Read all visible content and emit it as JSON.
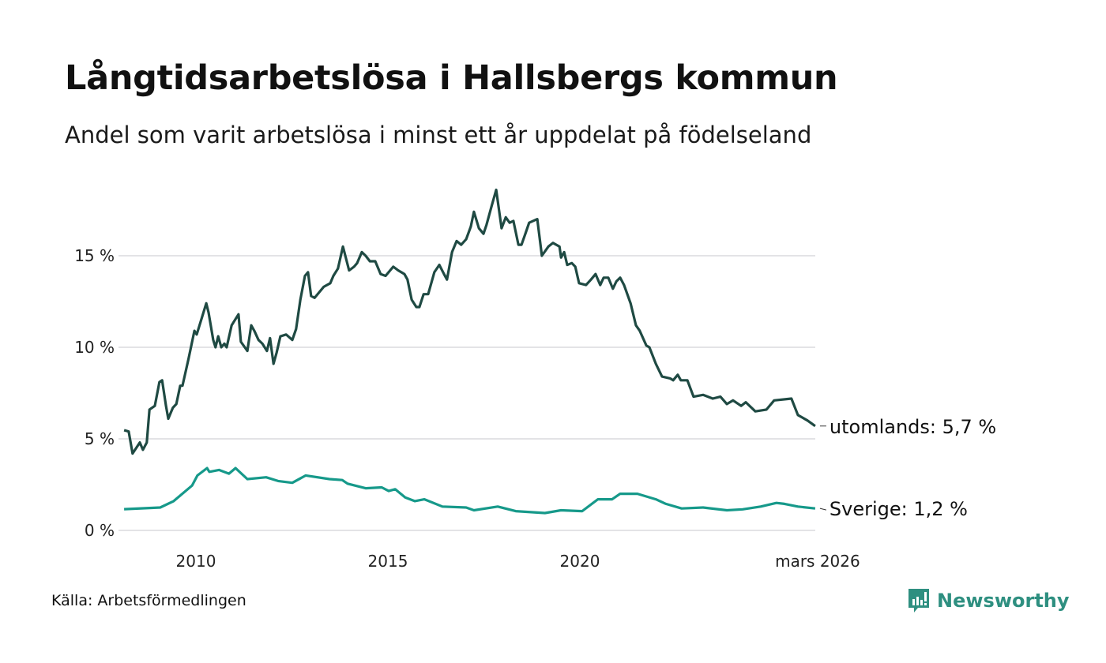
{
  "header": {
    "title": "Långtidsarbetslösa i Hallsbergs kommun",
    "subtitle": "Andel som varit arbetslösa i minst ett år uppdelat på födelseland"
  },
  "footer": {
    "source": "Källa: Arbetsförmedlingen",
    "logo_text": "Newsworthy"
  },
  "colors": {
    "utomlands": "#1f4a43",
    "sverige": "#16998a",
    "grid": "#e3e3e6",
    "logo": "#2e8f80"
  },
  "chart_data": {
    "type": "line",
    "title": "Långtidsarbetslösa i Hallsbergs kommun",
    "xlabel": "",
    "ylabel": "",
    "xlim": [
      2008.13,
      2026.13
    ],
    "ylim": [
      0,
      19
    ],
    "grid": true,
    "y_ticks": [
      {
        "value": 0,
        "label": "0 %"
      },
      {
        "value": 5,
        "label": "5 %"
      },
      {
        "value": 10,
        "label": "10 %"
      },
      {
        "value": 15,
        "label": "15 %"
      }
    ],
    "x_ticks": [
      {
        "value": 2010,
        "label": "2010"
      },
      {
        "value": 2015,
        "label": "2015"
      },
      {
        "value": 2020,
        "label": "2020"
      },
      {
        "value": 2026.13,
        "label": "mars 2026"
      }
    ],
    "series": [
      {
        "name": "utomlands",
        "end_label": "utomlands: 5,7 %",
        "points": [
          [
            2008.13,
            5.47
          ],
          [
            2008.25,
            5.4
          ],
          [
            2008.35,
            4.2
          ],
          [
            2008.54,
            4.8
          ],
          [
            2008.62,
            4.4
          ],
          [
            2008.72,
            4.8
          ],
          [
            2008.79,
            6.6
          ],
          [
            2008.93,
            6.8
          ],
          [
            2009.05,
            8.1
          ],
          [
            2009.12,
            8.2
          ],
          [
            2009.22,
            6.8
          ],
          [
            2009.28,
            6.1
          ],
          [
            2009.4,
            6.7
          ],
          [
            2009.49,
            6.9
          ],
          [
            2009.59,
            7.9
          ],
          [
            2009.65,
            7.9
          ],
          [
            2009.81,
            9.4
          ],
          [
            2009.96,
            10.9
          ],
          [
            2010.02,
            10.7
          ],
          [
            2010.27,
            12.4
          ],
          [
            2010.33,
            11.9
          ],
          [
            2010.45,
            10.4
          ],
          [
            2010.51,
            10.0
          ],
          [
            2010.58,
            10.6
          ],
          [
            2010.66,
            10.0
          ],
          [
            2010.74,
            10.2
          ],
          [
            2010.8,
            10.0
          ],
          [
            2010.93,
            11.2
          ],
          [
            2011.11,
            11.8
          ],
          [
            2011.17,
            10.3
          ],
          [
            2011.34,
            9.8
          ],
          [
            2011.44,
            11.2
          ],
          [
            2011.52,
            10.9
          ],
          [
            2011.63,
            10.4
          ],
          [
            2011.73,
            10.2
          ],
          [
            2011.85,
            9.8
          ],
          [
            2011.93,
            10.5
          ],
          [
            2012.02,
            9.1
          ],
          [
            2012.1,
            9.7
          ],
          [
            2012.2,
            10.6
          ],
          [
            2012.35,
            10.7
          ],
          [
            2012.51,
            10.4
          ],
          [
            2012.61,
            11.0
          ],
          [
            2012.72,
            12.6
          ],
          [
            2012.84,
            13.9
          ],
          [
            2012.92,
            14.1
          ],
          [
            2013.0,
            12.8
          ],
          [
            2013.09,
            12.7
          ],
          [
            2013.21,
            13.0
          ],
          [
            2013.33,
            13.3
          ],
          [
            2013.5,
            13.5
          ],
          [
            2013.58,
            13.9
          ],
          [
            2013.7,
            14.3
          ],
          [
            2013.83,
            15.5
          ],
          [
            2013.99,
            14.2
          ],
          [
            2014.12,
            14.4
          ],
          [
            2014.2,
            14.6
          ],
          [
            2014.32,
            15.2
          ],
          [
            2014.42,
            15.0
          ],
          [
            2014.53,
            14.7
          ],
          [
            2014.67,
            14.7
          ],
          [
            2014.81,
            14.0
          ],
          [
            2014.94,
            13.9
          ],
          [
            2015.14,
            14.4
          ],
          [
            2015.27,
            14.2
          ],
          [
            2015.43,
            14.0
          ],
          [
            2015.51,
            13.7
          ],
          [
            2015.62,
            12.6
          ],
          [
            2015.74,
            12.2
          ],
          [
            2015.82,
            12.2
          ],
          [
            2015.93,
            12.9
          ],
          [
            2016.05,
            12.9
          ],
          [
            2016.21,
            14.1
          ],
          [
            2016.34,
            14.5
          ],
          [
            2016.46,
            14.0
          ],
          [
            2016.54,
            13.7
          ],
          [
            2016.67,
            15.2
          ],
          [
            2016.79,
            15.8
          ],
          [
            2016.91,
            15.6
          ],
          [
            2017.04,
            15.9
          ],
          [
            2017.16,
            16.6
          ],
          [
            2017.24,
            17.4
          ],
          [
            2017.37,
            16.5
          ],
          [
            2017.49,
            16.2
          ],
          [
            2017.57,
            16.7
          ],
          [
            2017.7,
            17.7
          ],
          [
            2017.82,
            18.6
          ],
          [
            2017.96,
            16.5
          ],
          [
            2018.07,
            17.1
          ],
          [
            2018.17,
            16.8
          ],
          [
            2018.27,
            16.9
          ],
          [
            2018.4,
            15.6
          ],
          [
            2018.48,
            15.6
          ],
          [
            2018.58,
            16.2
          ],
          [
            2018.68,
            16.8
          ],
          [
            2018.89,
            17.0
          ],
          [
            2019.01,
            15.0
          ],
          [
            2019.18,
            15.5
          ],
          [
            2019.3,
            15.7
          ],
          [
            2019.47,
            15.5
          ],
          [
            2019.51,
            14.9
          ],
          [
            2019.59,
            15.2
          ],
          [
            2019.67,
            14.5
          ],
          [
            2019.79,
            14.6
          ],
          [
            2019.88,
            14.4
          ],
          [
            2019.98,
            13.5
          ],
          [
            2020.16,
            13.4
          ],
          [
            2020.29,
            13.7
          ],
          [
            2020.41,
            14.0
          ],
          [
            2020.53,
            13.4
          ],
          [
            2020.62,
            13.8
          ],
          [
            2020.74,
            13.8
          ],
          [
            2020.86,
            13.2
          ],
          [
            2020.95,
            13.6
          ],
          [
            2021.05,
            13.8
          ],
          [
            2021.15,
            13.4
          ],
          [
            2021.32,
            12.4
          ],
          [
            2021.46,
            11.2
          ],
          [
            2021.56,
            10.9
          ],
          [
            2021.73,
            10.1
          ],
          [
            2021.81,
            10.0
          ],
          [
            2021.98,
            9.1
          ],
          [
            2022.14,
            8.4
          ],
          [
            2022.35,
            8.3
          ],
          [
            2022.43,
            8.2
          ],
          [
            2022.55,
            8.5
          ],
          [
            2022.63,
            8.2
          ],
          [
            2022.8,
            8.2
          ],
          [
            2022.96,
            7.3
          ],
          [
            2023.21,
            7.4
          ],
          [
            2023.46,
            7.2
          ],
          [
            2023.66,
            7.3
          ],
          [
            2023.83,
            6.9
          ],
          [
            2023.99,
            7.1
          ],
          [
            2024.2,
            6.8
          ],
          [
            2024.32,
            7.0
          ],
          [
            2024.57,
            6.5
          ],
          [
            2024.86,
            6.6
          ],
          [
            2025.06,
            7.1
          ],
          [
            2025.51,
            7.2
          ],
          [
            2025.68,
            6.3
          ],
          [
            2025.93,
            6.0
          ],
          [
            2026.13,
            5.7
          ]
        ]
      },
      {
        "name": "Sverige",
        "end_label": "Sverige: 1,2 %",
        "points": [
          [
            2008.13,
            1.16
          ],
          [
            2009.07,
            1.25
          ],
          [
            2009.42,
            1.6
          ],
          [
            2009.9,
            2.45
          ],
          [
            2010.04,
            3.0
          ],
          [
            2010.29,
            3.4
          ],
          [
            2010.35,
            3.2
          ],
          [
            2010.6,
            3.3
          ],
          [
            2010.86,
            3.1
          ],
          [
            2011.03,
            3.4
          ],
          [
            2011.34,
            2.8
          ],
          [
            2011.83,
            2.9
          ],
          [
            2012.14,
            2.7
          ],
          [
            2012.51,
            2.6
          ],
          [
            2012.86,
            3.0
          ],
          [
            2013.48,
            2.8
          ],
          [
            2013.81,
            2.75
          ],
          [
            2013.95,
            2.55
          ],
          [
            2014.42,
            2.3
          ],
          [
            2014.84,
            2.35
          ],
          [
            2015.02,
            2.15
          ],
          [
            2015.19,
            2.25
          ],
          [
            2015.45,
            1.8
          ],
          [
            2015.7,
            1.6
          ],
          [
            2015.95,
            1.7
          ],
          [
            2016.42,
            1.3
          ],
          [
            2017.04,
            1.25
          ],
          [
            2017.24,
            1.1
          ],
          [
            2017.86,
            1.3
          ],
          [
            2018.33,
            1.05
          ],
          [
            2019.09,
            0.95
          ],
          [
            2019.51,
            1.1
          ],
          [
            2020.06,
            1.05
          ],
          [
            2020.47,
            1.7
          ],
          [
            2020.84,
            1.7
          ],
          [
            2021.05,
            2.0
          ],
          [
            2021.5,
            2.0
          ],
          [
            2021.98,
            1.7
          ],
          [
            2022.24,
            1.45
          ],
          [
            2022.65,
            1.2
          ],
          [
            2023.21,
            1.25
          ],
          [
            2023.83,
            1.1
          ],
          [
            2024.24,
            1.15
          ],
          [
            2024.71,
            1.3
          ],
          [
            2025.12,
            1.5
          ],
          [
            2025.33,
            1.45
          ],
          [
            2025.68,
            1.3
          ],
          [
            2026.13,
            1.2
          ]
        ]
      }
    ]
  }
}
